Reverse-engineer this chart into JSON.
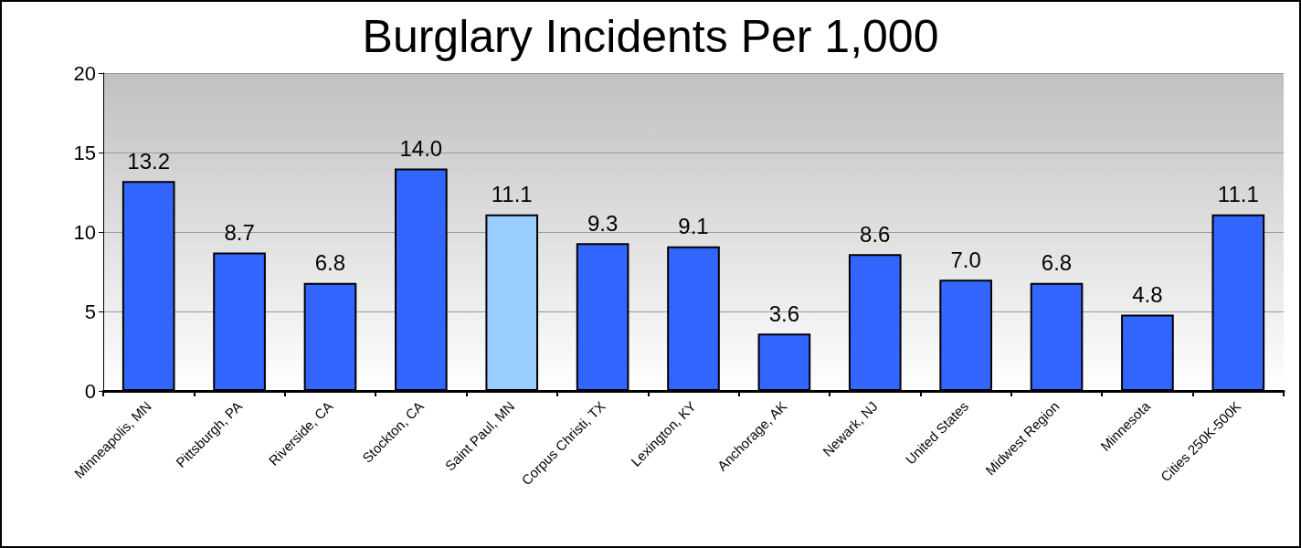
{
  "chart_data": {
    "type": "bar",
    "title": "Burglary Incidents Per 1,000",
    "categories": [
      "Minneapolis, MN",
      "Pittsburgh, PA",
      "Riverside, CA",
      "Stockton, CA",
      "Saint Paul, MN",
      "Corpus Christi, TX",
      "Lexington, KY",
      "Anchorage, AK",
      "Newark, NJ",
      "United States",
      "Midwest Region",
      "Minnesota",
      "Cities 250K-500K"
    ],
    "values": [
      13.2,
      8.7,
      6.8,
      14.0,
      11.1,
      9.3,
      9.1,
      3.6,
      8.6,
      7.0,
      6.8,
      4.8,
      11.1
    ],
    "value_labels": [
      "13.2",
      "8.7",
      "6.8",
      "14.0",
      "11.1",
      "9.3",
      "9.1",
      "3.6",
      "8.6",
      "7.0",
      "6.8",
      "4.8",
      "11.1"
    ],
    "colors": [
      "#3366ff",
      "#3366ff",
      "#3366ff",
      "#3366ff",
      "#99ccff",
      "#3366ff",
      "#3366ff",
      "#3366ff",
      "#3366ff",
      "#3366ff",
      "#3366ff",
      "#3366ff",
      "#3366ff"
    ],
    "ylim": [
      0,
      20
    ],
    "yticks": [
      0,
      5,
      10,
      15,
      20
    ],
    "grid": "y"
  }
}
